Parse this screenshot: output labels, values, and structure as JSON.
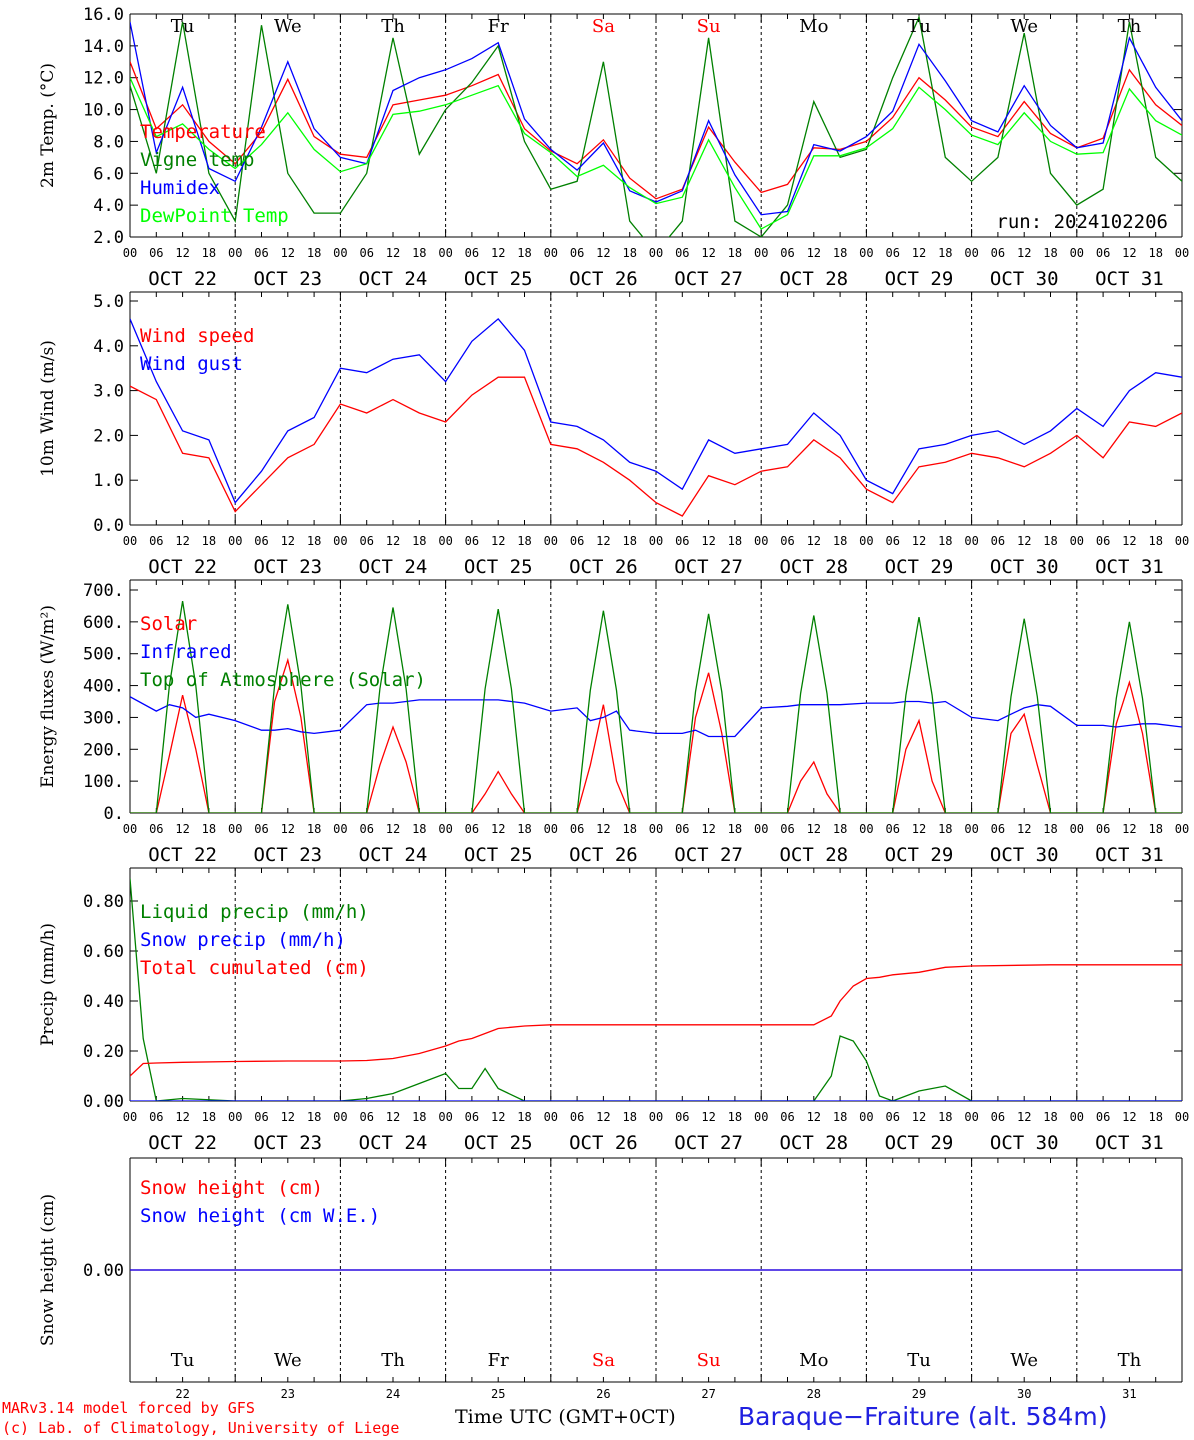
{
  "footer": {
    "model": "MARv3.14 model forced by GFS",
    "lab": "(c) Lab. of Climatology, University of Liege",
    "time_label": "Time UTC (GMT+0CT)",
    "station": "Baraque−Fraiture (alt. 584m)",
    "colors": {
      "credit": "#ff0000",
      "station": "#2020e0"
    }
  },
  "chart_data": [
    {
      "type": "line",
      "ylabel": "2m Temp. (°C)",
      "ylim": [
        2.0,
        16.0
      ],
      "yticks": [
        "2.0",
        "4.0",
        "6.0",
        "8.0",
        "10.0",
        "12.0",
        "14.0",
        "16.0"
      ],
      "annotation": "run: 2024102206",
      "day_abbr": [
        "Tu",
        "We",
        "Th",
        "Fr",
        "Sa",
        "Su",
        "Mo",
        "Tu",
        "We",
        "Th"
      ],
      "day_abbr_colors": [
        "#000000",
        "#000000",
        "#000000",
        "#000000",
        "#ff0000",
        "#ff0000",
        "#000000",
        "#000000",
        "#000000",
        "#000000"
      ],
      "x": [
        0,
        6,
        12,
        18,
        24,
        30,
        36,
        42,
        48,
        54,
        60,
        66,
        72,
        78,
        84,
        90,
        96,
        102,
        108,
        114,
        120,
        126,
        132,
        138,
        144,
        150,
        156,
        162,
        168,
        174,
        180,
        186,
        192,
        198,
        204,
        210,
        216,
        222,
        228,
        234,
        240
      ],
      "series": [
        {
          "name": "Temperature",
          "color": "#ff0000",
          "values": [
            13.0,
            8.8,
            10.3,
            8.0,
            6.6,
            8.6,
            11.9,
            8.3,
            7.2,
            7.0,
            10.3,
            10.6,
            10.9,
            11.5,
            12.2,
            8.8,
            7.4,
            6.6,
            8.1,
            5.7,
            4.4,
            5.0,
            8.9,
            6.7,
            4.8,
            5.3,
            7.6,
            7.5,
            8.0,
            9.5,
            12.0,
            10.6,
            8.9,
            8.3,
            10.5,
            8.5,
            7.6,
            8.2,
            12.5,
            10.3,
            9.0
          ]
        },
        {
          "name": "Vigne temp",
          "color": "#008000",
          "values": [
            11.5,
            6.0,
            15.5,
            6.0,
            3.0,
            15.3,
            6.0,
            3.5,
            3.5,
            6.0,
            14.5,
            7.2,
            10.0,
            11.7,
            14.0,
            8.0,
            5.0,
            5.5,
            13.0,
            3.0,
            1.0,
            3.0,
            14.5,
            3.0,
            2.0,
            4.0,
            10.5,
            7.0,
            7.5,
            12.0,
            15.8,
            7.0,
            5.5,
            7.0,
            14.8,
            6.0,
            4.0,
            5.0,
            15.5,
            7.0,
            5.5
          ]
        },
        {
          "name": "Humidex",
          "color": "#0000ff",
          "values": [
            15.5,
            7.3,
            11.4,
            6.3,
            5.5,
            8.9,
            13.0,
            8.8,
            7.0,
            6.6,
            11.2,
            12.0,
            12.5,
            13.2,
            14.2,
            9.4,
            7.5,
            6.2,
            7.9,
            4.9,
            4.2,
            4.9,
            9.3,
            5.9,
            3.4,
            3.6,
            7.8,
            7.4,
            8.3,
            9.9,
            14.1,
            11.8,
            9.3,
            8.6,
            11.5,
            9.0,
            7.6,
            7.9,
            14.5,
            11.4,
            9.3
          ]
        },
        {
          "name": "DewPoint Temp",
          "color": "#00ff00",
          "values": [
            12.0,
            8.3,
            9.1,
            7.5,
            6.3,
            7.8,
            9.8,
            7.5,
            6.1,
            6.6,
            9.7,
            9.9,
            10.3,
            10.9,
            11.5,
            8.5,
            7.3,
            5.8,
            6.5,
            5.1,
            4.1,
            4.5,
            8.1,
            5.1,
            2.5,
            3.4,
            7.1,
            7.1,
            7.6,
            8.8,
            11.4,
            10.0,
            8.4,
            7.8,
            9.8,
            8.0,
            7.2,
            7.3,
            11.3,
            9.3,
            8.4
          ]
        }
      ]
    },
    {
      "type": "line",
      "ylabel": "10m Wind (m/s)",
      "ylim": [
        0.0,
        5.0
      ],
      "yticks": [
        "0.0",
        "1.0",
        "2.0",
        "3.0",
        "4.0",
        "5.0"
      ],
      "x": [
        0,
        6,
        12,
        18,
        24,
        30,
        36,
        42,
        48,
        54,
        60,
        66,
        72,
        78,
        84,
        90,
        96,
        102,
        108,
        114,
        120,
        126,
        132,
        138,
        144,
        150,
        156,
        162,
        168,
        174,
        180,
        186,
        192,
        198,
        204,
        210,
        216,
        222,
        228,
        234,
        240
      ],
      "series": [
        {
          "name": "Wind speed",
          "color": "#ff0000",
          "values": [
            3.1,
            2.8,
            1.6,
            1.5,
            0.3,
            0.9,
            1.5,
            1.8,
            2.7,
            2.5,
            2.8,
            2.5,
            2.3,
            2.9,
            3.3,
            3.3,
            1.8,
            1.7,
            1.4,
            1.0,
            0.5,
            0.2,
            1.1,
            0.9,
            1.2,
            1.3,
            1.9,
            1.5,
            0.8,
            0.5,
            1.3,
            1.4,
            1.6,
            1.5,
            1.3,
            1.6,
            2.0,
            1.5,
            2.3,
            2.2,
            2.5
          ]
        },
        {
          "name": "Wind gust",
          "color": "#0000ff",
          "values": [
            4.6,
            3.2,
            2.1,
            1.9,
            0.5,
            1.2,
            2.1,
            2.4,
            3.5,
            3.4,
            3.7,
            3.8,
            3.2,
            4.1,
            4.6,
            3.9,
            2.3,
            2.2,
            1.9,
            1.4,
            1.2,
            0.8,
            1.9,
            1.6,
            1.7,
            1.8,
            2.5,
            2.0,
            1.0,
            0.7,
            1.7,
            1.8,
            2.0,
            2.1,
            1.8,
            2.1,
            2.6,
            2.2,
            3.0,
            3.4,
            3.3
          ]
        }
      ]
    },
    {
      "type": "line",
      "ylabel": "Energy fluxes (W/m²)",
      "ylim": [
        0,
        700
      ],
      "yticks": [
        "0.",
        "100.",
        "200.",
        "300.",
        "400.",
        "500.",
        "600.",
        "700."
      ],
      "x": [
        0,
        6,
        9,
        12,
        15,
        18,
        24,
        30,
        33,
        36,
        39,
        42,
        48,
        54,
        57,
        60,
        63,
        66,
        72,
        78,
        81,
        84,
        87,
        90,
        96,
        102,
        105,
        108,
        111,
        114,
        120,
        126,
        129,
        132,
        135,
        138,
        144,
        150,
        153,
        156,
        159,
        162,
        168,
        174,
        177,
        180,
        183,
        186,
        192,
        198,
        201,
        204,
        207,
        210,
        216,
        222,
        225,
        228,
        231,
        234,
        240
      ],
      "series": [
        {
          "name": "Solar",
          "color": "#ff0000",
          "values": [
            0,
            0,
            180,
            370,
            200,
            0,
            0,
            0,
            350,
            480,
            300,
            0,
            0,
            0,
            150,
            270,
            160,
            0,
            0,
            0,
            60,
            130,
            60,
            0,
            0,
            0,
            150,
            340,
            100,
            0,
            0,
            0,
            300,
            440,
            250,
            0,
            0,
            0,
            100,
            160,
            60,
            0,
            0,
            0,
            200,
            290,
            100,
            0,
            0,
            0,
            250,
            310,
            150,
            0,
            0,
            0,
            280,
            410,
            250,
            0,
            0
          ]
        },
        {
          "name": "Infrared",
          "color": "#0000ff",
          "values": [
            365,
            320,
            340,
            330,
            300,
            310,
            290,
            260,
            260,
            265,
            255,
            250,
            260,
            340,
            345,
            345,
            350,
            355,
            355,
            355,
            355,
            355,
            350,
            345,
            320,
            330,
            290,
            300,
            320,
            260,
            250,
            250,
            260,
            240,
            240,
            240,
            330,
            335,
            340,
            340,
            340,
            340,
            345,
            345,
            350,
            350,
            345,
            350,
            300,
            290,
            310,
            330,
            340,
            335,
            275,
            275,
            270,
            275,
            280,
            280,
            270
          ]
        },
        {
          "name": "Top of Atmosphere (Solar)",
          "color": "#008000",
          "values": [
            0,
            0,
            400,
            665,
            400,
            0,
            0,
            0,
            400,
            655,
            400,
            0,
            0,
            0,
            390,
            645,
            390,
            0,
            0,
            0,
            390,
            640,
            390,
            0,
            0,
            0,
            385,
            635,
            385,
            0,
            0,
            0,
            380,
            625,
            380,
            0,
            0,
            0,
            375,
            620,
            375,
            0,
            0,
            0,
            370,
            615,
            370,
            0,
            0,
            0,
            365,
            610,
            365,
            0,
            0,
            0,
            360,
            600,
            360,
            0,
            0
          ]
        }
      ]
    },
    {
      "type": "line",
      "ylabel": "Precip (mm/h)",
      "ylim": [
        0.0,
        0.9
      ],
      "yticks": [
        "0.00",
        "0.20",
        "0.40",
        "0.60",
        "0.80"
      ],
      "x": [
        0,
        3,
        6,
        12,
        24,
        36,
        48,
        54,
        60,
        66,
        72,
        75,
        78,
        81,
        84,
        90,
        96,
        120,
        144,
        156,
        160,
        162,
        165,
        168,
        171,
        174,
        180,
        186,
        192,
        210,
        240
      ],
      "series": [
        {
          "name": "Liquid precip (mm/h)",
          "color": "#008000",
          "values": [
            0.89,
            0.25,
            0.0,
            0.01,
            0.0,
            0.0,
            0.0,
            0.01,
            0.03,
            0.07,
            0.11,
            0.05,
            0.05,
            0.13,
            0.05,
            0.0,
            0.0,
            0.0,
            0.0,
            0.0,
            0.1,
            0.26,
            0.24,
            0.16,
            0.02,
            0.0,
            0.04,
            0.06,
            0.0,
            0.0,
            0.0
          ]
        },
        {
          "name": "Snow precip (mm/h)",
          "color": "#0000ff",
          "values": [
            0.0,
            0.0,
            0.0,
            0.0,
            0.0,
            0.0,
            0.0,
            0.0,
            0.0,
            0.0,
            0.0,
            0.0,
            0.0,
            0.0,
            0.0,
            0.0,
            0.0,
            0.0,
            0.0,
            0.0,
            0.0,
            0.0,
            0.0,
            0.0,
            0.0,
            0.0,
            0.0,
            0.0,
            0.0,
            0.0,
            0.0
          ]
        },
        {
          "name": "Total cumulated (cm)",
          "color": "#ff0000",
          "values": [
            0.1,
            0.15,
            0.152,
            0.155,
            0.158,
            0.16,
            0.16,
            0.162,
            0.17,
            0.19,
            0.22,
            0.24,
            0.25,
            0.27,
            0.29,
            0.3,
            0.305,
            0.305,
            0.305,
            0.305,
            0.34,
            0.4,
            0.46,
            0.49,
            0.495,
            0.505,
            0.515,
            0.535,
            0.54,
            0.545,
            0.545
          ]
        }
      ]
    },
    {
      "type": "line",
      "ylabel": "Snow height (cm)",
      "ylim": [
        -1,
        1
      ],
      "yticks": [
        "0.00"
      ],
      "day_abbr": [
        "Tu",
        "We",
        "Th",
        "Fr",
        "Sa",
        "Su",
        "Mo",
        "Tu",
        "We",
        "Th"
      ],
      "day_abbr_colors": [
        "#000000",
        "#000000",
        "#000000",
        "#000000",
        "#ff0000",
        "#ff0000",
        "#000000",
        "#000000",
        "#000000",
        "#000000"
      ],
      "day_numbers": [
        "22",
        "23",
        "24",
        "25",
        "26",
        "27",
        "28",
        "29",
        "30",
        "31"
      ],
      "x": [
        0,
        240
      ],
      "series": [
        {
          "name": "Snow height (cm)",
          "color": "#ff0000",
          "values": [
            0,
            0
          ]
        },
        {
          "name": "Snow height (cm W.E.)",
          "color": "#0000ff",
          "values": [
            0,
            0
          ]
        }
      ]
    }
  ],
  "x_axis": {
    "hour_labels": [
      "00",
      "06",
      "12",
      "18"
    ],
    "final_hour": "00",
    "dates": [
      "OCT 22",
      "OCT 23",
      "OCT 24",
      "OCT 25",
      "OCT 26",
      "OCT 27",
      "OCT 28",
      "OCT 29",
      "OCT 30",
      "OCT 31"
    ]
  }
}
